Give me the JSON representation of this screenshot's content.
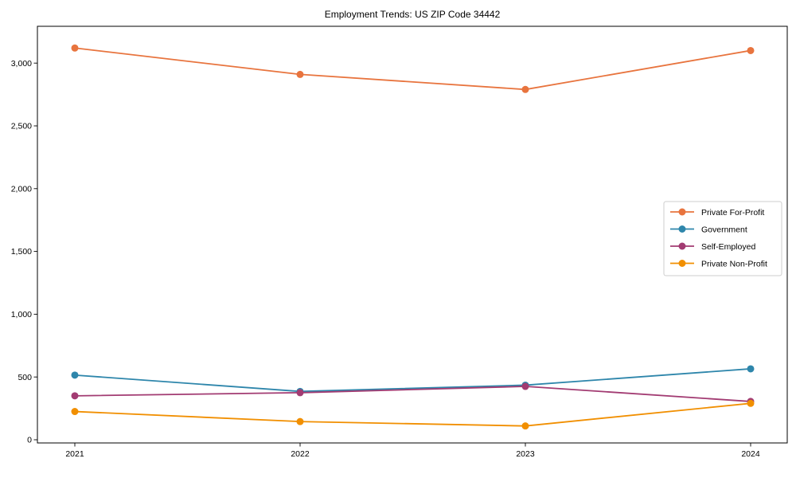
{
  "title": "Employment Trends: US ZIP Code 34442",
  "chart_data": {
    "type": "line",
    "x": [
      "2021",
      "2022",
      "2023",
      "2024"
    ],
    "series": [
      {
        "name": "Private For-Profit",
        "color": "#E8743E",
        "values": [
          3120,
          2910,
          2790,
          3100
        ]
      },
      {
        "name": "Government",
        "color": "#2E86AB",
        "values": [
          515,
          385,
          435,
          565
        ]
      },
      {
        "name": "Self-Employed",
        "color": "#A23B72",
        "values": [
          350,
          375,
          425,
          305
        ]
      },
      {
        "name": "Private Non-Profit",
        "color": "#F18F01",
        "values": [
          225,
          145,
          110,
          290
        ]
      }
    ],
    "yticks": {
      "values": [
        0,
        500,
        1000,
        1500,
        2000,
        2500,
        3000
      ],
      "labels": [
        "0",
        "500",
        "1,000",
        "1,500",
        "2,000",
        "2,500",
        "3,000"
      ]
    },
    "ylim": [
      0,
      3300
    ],
    "xlabel": "",
    "ylabel": "",
    "grid": false,
    "marker": "o",
    "legend": {
      "position": "center right"
    },
    "frame_color": "#000000",
    "legend_border_color": "#cccccc",
    "background_color": "#ffffff"
  }
}
